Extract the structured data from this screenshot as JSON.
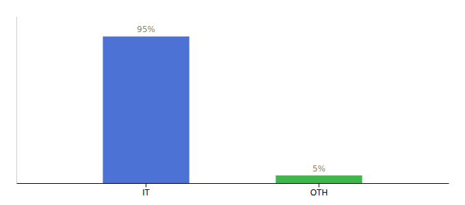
{
  "chart_data": {
    "type": "bar",
    "categories": [
      "IT",
      "OTH"
    ],
    "values": [
      95,
      5
    ],
    "value_labels": [
      "95%",
      "5%"
    ],
    "data_labels": true,
    "colors": [
      "#4b72d4",
      "#3db84a"
    ],
    "ylim": [
      0,
      108
    ],
    "grid": false,
    "tick_labels": "x"
  }
}
